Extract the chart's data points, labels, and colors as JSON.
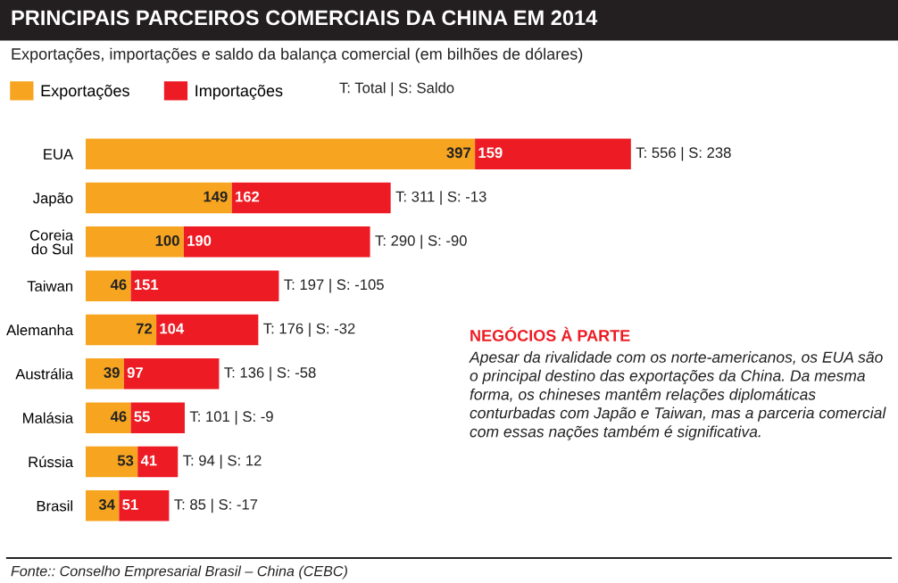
{
  "chart_data": {
    "type": "bar",
    "orientation": "horizontal",
    "stacked": true,
    "title": "PRINCIPAIS PARCEIROS COMERCIAIS DA CHINA EM 2014",
    "subtitle": "Exportações, importações e saldo da balança comercial (em bilhões de dólares)",
    "categories": [
      "EUA",
      "Japão",
      "Coreia\ndo Sul",
      "Taiwan",
      "Alemanha",
      "Austrália",
      "Malásia",
      "Rússia",
      "Brasil"
    ],
    "series": [
      {
        "name": "Exportações",
        "color": "#f7a521",
        "values": [
          397,
          149,
          100,
          46,
          72,
          39,
          46,
          53,
          34
        ]
      },
      {
        "name": "Importações",
        "color": "#ed1c24",
        "values": [
          159,
          162,
          190,
          151,
          104,
          97,
          55,
          41,
          51
        ]
      }
    ],
    "data_labels": true,
    "totals": [
      "T: 556 | S: 238",
      "T: 311 | S: -13",
      "T: 290 | S: -90",
      "T: 197 | S: -105",
      "T: 176 | S: -32",
      "T: 136 | S: -58",
      "T: 101 | S: -9",
      "T: 94 | S: 12",
      "T: 85 | S: -17"
    ],
    "legend": "top left",
    "annotations": [
      "T: Total | S: Saldo",
      "NEGÓCIOS À PARTE",
      "Apesar da rivalidade com os norte-americanos, os EUA são o principal destino das exportações da China. Da mesma forma, os chineses mantêm relações diplomáticas conturbadas com Japão e Taiwan, mas a parceria comercial com essas nações também é significativa.",
      "Fonte:: Conselho Empresarial Brasil – China (CEBC)"
    ]
  }
}
